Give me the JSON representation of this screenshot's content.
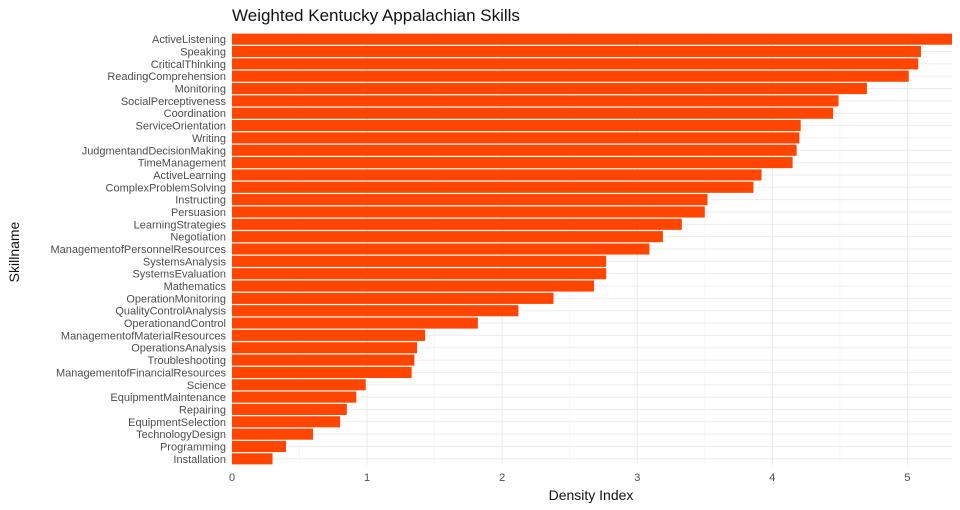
{
  "chart_data": {
    "type": "bar",
    "orientation": "horizontal",
    "title": "Weighted Kentucky Appalachian Skills",
    "xlabel": "Density Index",
    "ylabel": "Skillname",
    "xlim": [
      0,
      5.33
    ],
    "xticks": [
      0,
      1,
      2,
      3,
      4,
      5
    ],
    "grid": true,
    "bar_color": "#FF4500",
    "categories": [
      "ActiveListening",
      "Speaking",
      "CriticalThinking",
      "ReadingComprehension",
      "Monitoring",
      "SocialPerceptiveness",
      "Coordination",
      "ServiceOrientation",
      "Writing",
      "JudgmentandDecisionMaking",
      "TimeManagement",
      "ActiveLearning",
      "ComplexProblemSolving",
      "Instructing",
      "Persuasion",
      "LearningStrategies",
      "Negotiation",
      "ManagementofPersonnelResources",
      "SystemsAnalysis",
      "SystemsEvaluation",
      "Mathematics",
      "OperationMonitoring",
      "QualityControlAnalysis",
      "OperationandControl",
      "ManagementofMaterialResources",
      "OperationsAnalysis",
      "Troubleshooting",
      "ManagementofFinancialResources",
      "Science",
      "EquipmentMaintenance",
      "Repairing",
      "EquipmentSelection",
      "TechnologyDesign",
      "Programming",
      "Installation"
    ],
    "values": [
      5.33,
      5.1,
      5.08,
      5.01,
      4.7,
      4.49,
      4.45,
      4.21,
      4.2,
      4.18,
      4.15,
      3.92,
      3.86,
      3.52,
      3.5,
      3.33,
      3.19,
      3.09,
      2.77,
      2.77,
      2.68,
      2.38,
      2.12,
      1.82,
      1.43,
      1.37,
      1.35,
      1.33,
      0.99,
      0.92,
      0.85,
      0.8,
      0.6,
      0.4,
      0.3
    ]
  }
}
